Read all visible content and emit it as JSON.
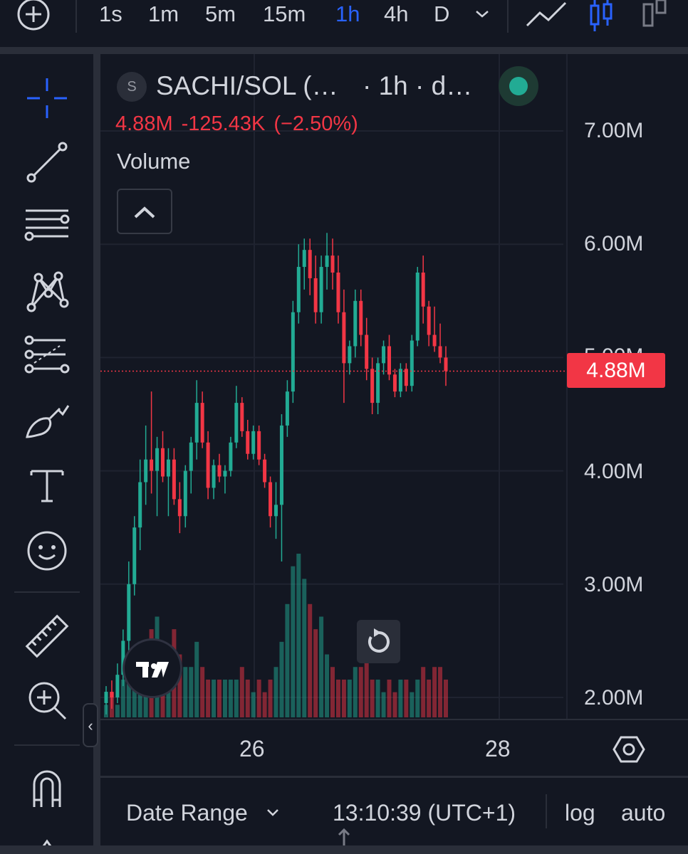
{
  "toolbar": {
    "timeframes": [
      "1s",
      "1m",
      "5m",
      "15m",
      "1h",
      "4h",
      "D"
    ],
    "active_timeframe": "1h"
  },
  "legend": {
    "symbol_initial": "S",
    "symbol": "SACHI/SOL (…",
    "interval": "· 1h · d…",
    "last_price": "4.88M",
    "change": "-125.43K",
    "change_pct": "(−2.50%)",
    "volume_label": "Volume"
  },
  "axis": {
    "y_labels": [
      "7.00M",
      "6.00M",
      "5.00M",
      "4.00M",
      "3.00M",
      "2.00M"
    ],
    "x_labels": [
      "26",
      "28"
    ],
    "current_price_tag": "4.88M"
  },
  "bottom_bar": {
    "date_range": "Date Range",
    "clock": "13:10:39 (UTC+1)",
    "log": "log",
    "auto": "auto"
  },
  "colors": {
    "up": "#22ab94",
    "down": "#f23645",
    "accent": "#2962ff"
  },
  "chart_data": {
    "type": "candlestick",
    "ylim": [
      1800000,
      7400000
    ],
    "y_ticks": [
      2000000,
      3000000,
      4000000,
      5000000,
      6000000,
      7000000
    ],
    "current_price": 4880000,
    "candles": [
      {
        "o": 1.95,
        "h": 2.1,
        "l": 1.85,
        "c": 2.05
      },
      {
        "o": 2.05,
        "h": 2.15,
        "l": 1.9,
        "c": 2.0
      },
      {
        "o": 2.0,
        "h": 2.3,
        "l": 1.95,
        "c": 2.2
      },
      {
        "o": 2.2,
        "h": 2.6,
        "l": 2.1,
        "c": 2.5
      },
      {
        "o": 2.5,
        "h": 3.2,
        "l": 2.4,
        "c": 3.0
      },
      {
        "o": 3.0,
        "h": 3.6,
        "l": 2.9,
        "c": 3.5
      },
      {
        "o": 3.5,
        "h": 4.1,
        "l": 3.3,
        "c": 3.9
      },
      {
        "o": 3.9,
        "h": 4.4,
        "l": 3.7,
        "c": 4.1
      },
      {
        "o": 4.1,
        "h": 4.7,
        "l": 3.8,
        "c": 4.0
      },
      {
        "o": 4.0,
        "h": 4.3,
        "l": 3.6,
        "c": 4.2
      },
      {
        "o": 4.2,
        "h": 4.35,
        "l": 3.9,
        "c": 3.95
      },
      {
        "o": 3.95,
        "h": 4.2,
        "l": 3.6,
        "c": 4.1
      },
      {
        "o": 4.1,
        "h": 4.2,
        "l": 3.7,
        "c": 3.75
      },
      {
        "o": 3.75,
        "h": 3.9,
        "l": 3.45,
        "c": 3.6
      },
      {
        "o": 3.6,
        "h": 4.05,
        "l": 3.5,
        "c": 4.0
      },
      {
        "o": 4.0,
        "h": 4.3,
        "l": 3.8,
        "c": 4.25
      },
      {
        "o": 4.25,
        "h": 4.8,
        "l": 4.1,
        "c": 4.6
      },
      {
        "o": 4.6,
        "h": 4.7,
        "l": 4.2,
        "c": 4.25
      },
      {
        "o": 4.25,
        "h": 4.35,
        "l": 3.75,
        "c": 3.85
      },
      {
        "o": 3.85,
        "h": 4.1,
        "l": 3.75,
        "c": 4.05
      },
      {
        "o": 4.05,
        "h": 4.15,
        "l": 3.9,
        "c": 3.95
      },
      {
        "o": 3.95,
        "h": 4.05,
        "l": 3.8,
        "c": 4.0
      },
      {
        "o": 4.0,
        "h": 4.3,
        "l": 3.95,
        "c": 4.25
      },
      {
        "o": 4.25,
        "h": 4.75,
        "l": 4.2,
        "c": 4.6
      },
      {
        "o": 4.6,
        "h": 4.65,
        "l": 4.3,
        "c": 4.35
      },
      {
        "o": 4.35,
        "h": 4.45,
        "l": 4.1,
        "c": 4.15
      },
      {
        "o": 4.15,
        "h": 4.4,
        "l": 4.1,
        "c": 4.35
      },
      {
        "o": 4.35,
        "h": 4.4,
        "l": 4.05,
        "c": 4.1
      },
      {
        "o": 4.1,
        "h": 4.15,
        "l": 3.85,
        "c": 3.9
      },
      {
        "o": 3.9,
        "h": 3.95,
        "l": 3.5,
        "c": 3.6
      },
      {
        "o": 3.6,
        "h": 3.9,
        "l": 3.4,
        "c": 3.7
      },
      {
        "o": 3.7,
        "h": 4.5,
        "l": 3.2,
        "c": 4.4
      },
      {
        "o": 4.4,
        "h": 4.8,
        "l": 4.3,
        "c": 4.7
      },
      {
        "o": 4.7,
        "h": 5.5,
        "l": 4.6,
        "c": 5.4
      },
      {
        "o": 5.4,
        "h": 6.0,
        "l": 5.3,
        "c": 5.8
      },
      {
        "o": 5.8,
        "h": 6.05,
        "l": 5.6,
        "c": 5.95
      },
      {
        "o": 5.95,
        "h": 6.05,
        "l": 5.55,
        "c": 5.7
      },
      {
        "o": 5.7,
        "h": 5.9,
        "l": 5.3,
        "c": 5.4
      },
      {
        "o": 5.4,
        "h": 5.9,
        "l": 5.3,
        "c": 5.8
      },
      {
        "o": 5.8,
        "h": 6.1,
        "l": 5.6,
        "c": 5.9
      },
      {
        "o": 5.9,
        "h": 6.05,
        "l": 5.6,
        "c": 5.75
      },
      {
        "o": 5.75,
        "h": 5.9,
        "l": 5.3,
        "c": 5.4
      },
      {
        "o": 5.4,
        "h": 5.6,
        "l": 4.6,
        "c": 4.95
      },
      {
        "o": 4.95,
        "h": 5.15,
        "l": 4.85,
        "c": 5.1
      },
      {
        "o": 5.1,
        "h": 5.6,
        "l": 5.0,
        "c": 5.5
      },
      {
        "o": 5.5,
        "h": 5.6,
        "l": 5.1,
        "c": 5.2
      },
      {
        "o": 5.2,
        "h": 5.35,
        "l": 4.8,
        "c": 4.9
      },
      {
        "o": 4.9,
        "h": 5.0,
        "l": 4.5,
        "c": 4.6
      },
      {
        "o": 4.6,
        "h": 5.0,
        "l": 4.5,
        "c": 4.95
      },
      {
        "o": 4.95,
        "h": 5.15,
        "l": 4.85,
        "c": 5.1
      },
      {
        "o": 5.1,
        "h": 5.2,
        "l": 4.8,
        "c": 4.85
      },
      {
        "o": 4.85,
        "h": 4.9,
        "l": 4.65,
        "c": 4.7
      },
      {
        "o": 4.7,
        "h": 4.95,
        "l": 4.65,
        "c": 4.9
      },
      {
        "o": 4.9,
        "h": 4.95,
        "l": 4.7,
        "c": 4.75
      },
      {
        "o": 4.75,
        "h": 5.2,
        "l": 4.7,
        "c": 5.15
      },
      {
        "o": 5.15,
        "h": 5.8,
        "l": 5.1,
        "c": 5.75
      },
      {
        "o": 5.75,
        "h": 5.9,
        "l": 5.3,
        "c": 5.45
      },
      {
        "o": 5.45,
        "h": 5.5,
        "l": 5.1,
        "c": 5.2
      },
      {
        "o": 5.2,
        "h": 5.45,
        "l": 5.05,
        "c": 5.1
      },
      {
        "o": 5.1,
        "h": 5.3,
        "l": 4.95,
        "c": 5.0
      },
      {
        "o": 5.0,
        "h": 5.1,
        "l": 4.75,
        "c": 4.88
      }
    ],
    "volume_max_label": "relative",
    "volumes": [
      1,
      2,
      1,
      3,
      4,
      5,
      6,
      5,
      7,
      8,
      6,
      5,
      7,
      5,
      4,
      4,
      6,
      4,
      3,
      3,
      3,
      3,
      3,
      3,
      4,
      3,
      2,
      3,
      2,
      3,
      4,
      6,
      9,
      12,
      13,
      11,
      9,
      7,
      8,
      5,
      4,
      3,
      3,
      3,
      4,
      4,
      5,
      3,
      3,
      2,
      3,
      2,
      3,
      3,
      2,
      3,
      4,
      3,
      4,
      4,
      3
    ]
  }
}
